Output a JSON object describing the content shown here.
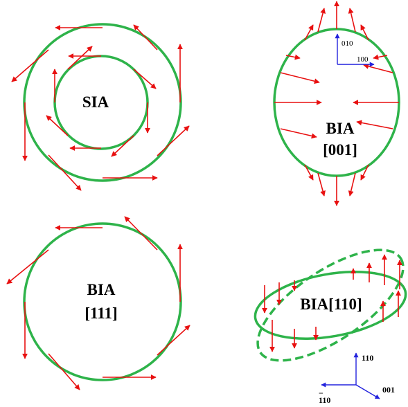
{
  "panels": {
    "sia": {
      "label": "SIA"
    },
    "bia001": {
      "line1": "BIA",
      "line2": "[001]",
      "axis_x": "100",
      "axis_y": "010"
    },
    "bia111": {
      "line1": "BIA",
      "line2": "[111]"
    },
    "bia110": {
      "label": "BIA[110]",
      "axis_up": "110",
      "axis_right": "001",
      "axis_left": "110",
      "axis_left_bar": "−"
    }
  },
  "colors": {
    "circle": "#2eb34a",
    "arrow": "#e81010",
    "axis": "#2222dd"
  }
}
